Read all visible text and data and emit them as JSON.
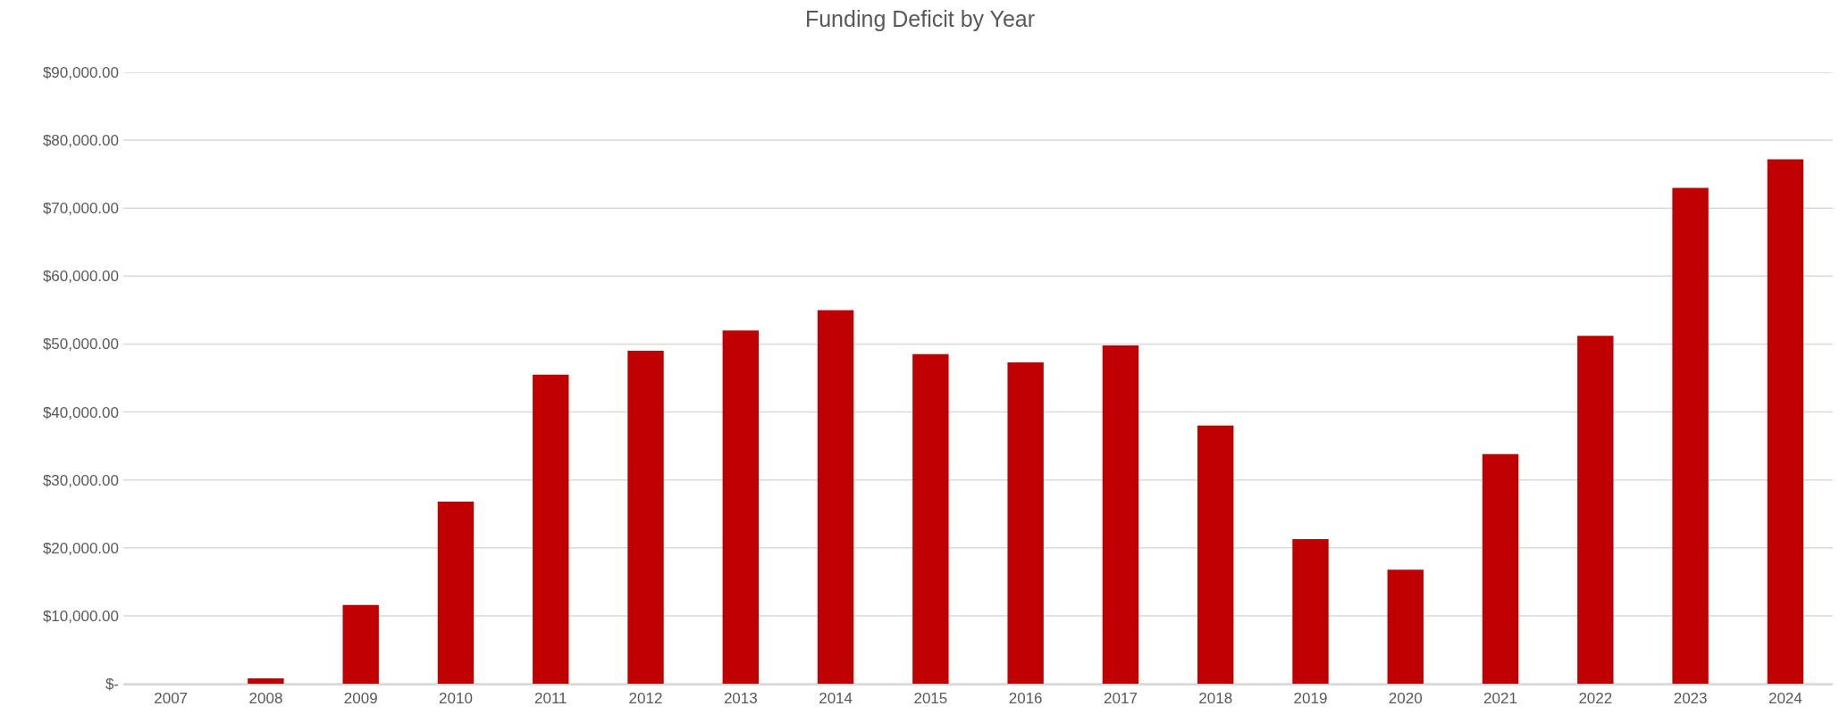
{
  "chart_data": {
    "type": "bar",
    "title": "Funding Deficit by Year",
    "categories": [
      "2007",
      "2008",
      "2009",
      "2010",
      "2011",
      "2012",
      "2013",
      "2014",
      "2015",
      "2016",
      "2017",
      "2018",
      "2019",
      "2020",
      "2021",
      "2022",
      "2023",
      "2024"
    ],
    "values": [
      0,
      800,
      11600,
      26800,
      45500,
      49000,
      52000,
      55000,
      48500,
      47300,
      49800,
      38000,
      21300,
      16800,
      33800,
      51200,
      73000,
      77200
    ],
    "color": "#c00000",
    "ylim": [
      0,
      90000
    ],
    "yticks": [
      {
        "value": 0,
        "label": "$-"
      },
      {
        "value": 10000,
        "label": "$10,000.00"
      },
      {
        "value": 20000,
        "label": "$20,000.00"
      },
      {
        "value": 30000,
        "label": "$30,000.00"
      },
      {
        "value": 40000,
        "label": "$40,000.00"
      },
      {
        "value": 50000,
        "label": "$50,000.00"
      },
      {
        "value": 60000,
        "label": "$60,000.00"
      },
      {
        "value": 70000,
        "label": "$70,000.00"
      },
      {
        "value": 80000,
        "label": "$80,000.00"
      },
      {
        "value": 90000,
        "label": "$90,000.00"
      }
    ],
    "grid": "y"
  }
}
